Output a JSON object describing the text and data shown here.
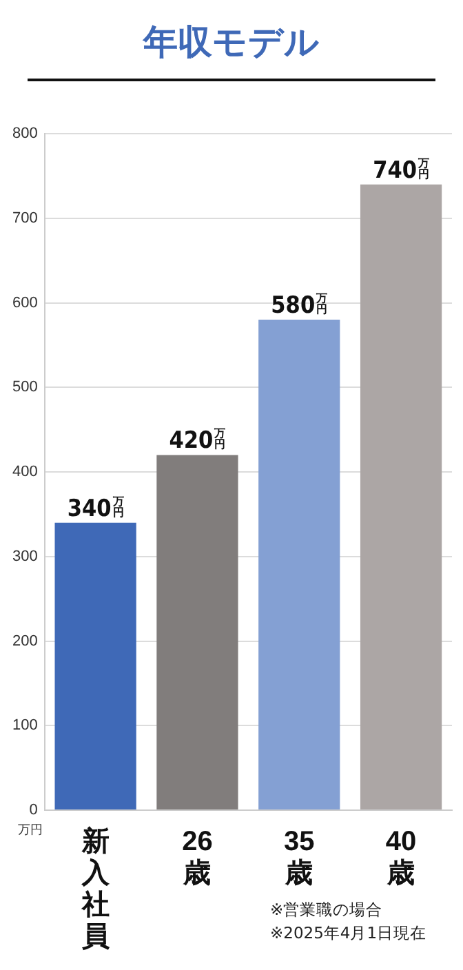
{
  "chart_data": {
    "type": "bar",
    "title": "年収モデル",
    "ylabel": "万円",
    "categories": [
      "新入社員",
      "26歳",
      "35歳",
      "40歳"
    ],
    "values": [
      340,
      420,
      580,
      740
    ],
    "colors": [
      "#3f69b7",
      "#817d7c",
      "#84a0d3",
      "#aca6a5"
    ],
    "value_labels": [
      "340万円",
      "420万円",
      "580万円",
      "740万円"
    ],
    "ylim": [
      0,
      800
    ],
    "yticks": [
      0,
      100,
      200,
      300,
      400,
      500,
      600,
      700,
      800
    ],
    "grid": "y",
    "annotations": [
      "※営業職の場合",
      "※2025年4月1日現在"
    ]
  }
}
